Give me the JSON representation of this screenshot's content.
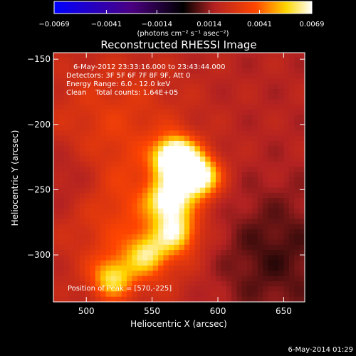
{
  "colorbar": {
    "tick_labels": [
      "-0.0069",
      "-0.0041",
      "-0.0014",
      "0.0014",
      "0.0041",
      "0.0069"
    ],
    "tick_values": [
      -0.0069,
      -0.0041,
      -0.0014,
      0.0014,
      0.0041,
      0.0069
    ],
    "range": [
      -0.0069,
      0.0069
    ],
    "units_label": "(photons cm⁻² s⁻¹ asec⁻²)",
    "colors": [
      "#0000ff",
      "#4b0082",
      "#000000",
      "#b22222",
      "#ff4500",
      "#ffd700",
      "#ffffff"
    ]
  },
  "title": "Reconstructed RHESSI Image",
  "annotations": {
    "time_range": "6-May-2012 23:33:16.000 to 23:43:44.000",
    "detectors": "Detectors: 3F 5F 6F 7F 8F 9F, Att 0",
    "energy": "Energy Range: 6.0 - 12.0 keV",
    "clean": "Clean    Total counts: 1.64E+05",
    "peak": "Position of Peak = [570,-225]"
  },
  "footer_timestamp": "6-May-2014 01:29",
  "chart_data": {
    "type": "heatmap",
    "title": "Reconstructed RHESSI Image",
    "xlabel": "Heliocentric X (arcsec)",
    "ylabel": "Heliocentric Y (arcsec)",
    "xlim": [
      475,
      666
    ],
    "ylim": [
      -336,
      -145
    ],
    "x_ticks": [
      500,
      550,
      600,
      650
    ],
    "y_ticks": [
      -150,
      -200,
      -250,
      -300
    ],
    "peak": {
      "x": 570,
      "y": -225
    },
    "value_range": [
      -0.0069,
      0.0069
    ],
    "sources": [
      {
        "x": 568,
        "y": -226,
        "amplitude": 0.0069
      },
      {
        "x": 585,
        "y": -240,
        "amplitude": 0.0056
      },
      {
        "x": 563,
        "y": -258,
        "amplitude": 0.0044
      },
      {
        "x": 568,
        "y": -283,
        "amplitude": 0.0034
      },
      {
        "x": 546,
        "y": -300,
        "amplitude": 0.003
      },
      {
        "x": 520,
        "y": -318,
        "amplitude": 0.0034
      }
    ]
  }
}
